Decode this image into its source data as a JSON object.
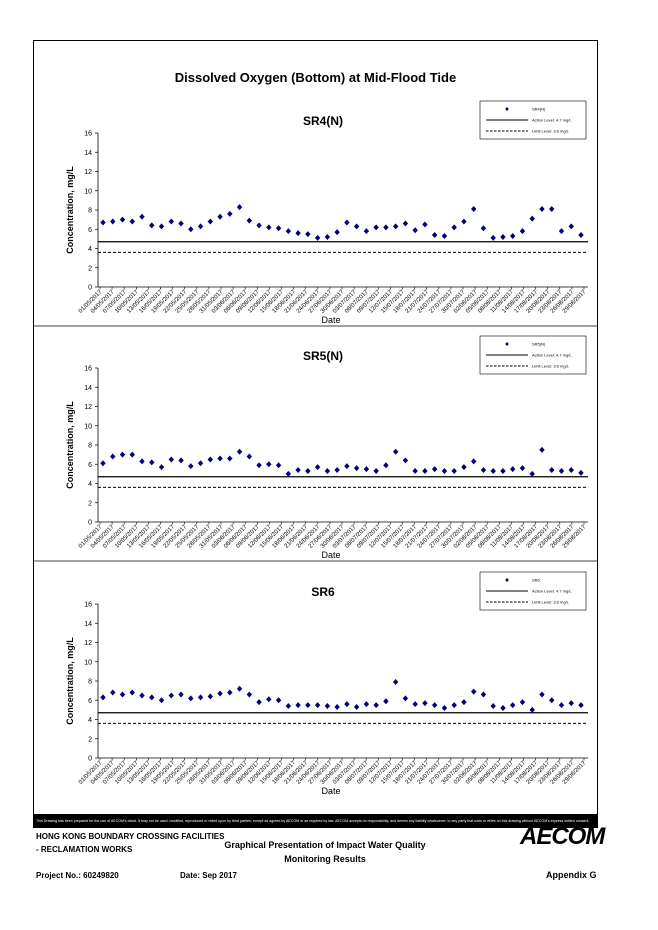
{
  "page_title": "Dissolved Oxygen (Bottom) at Mid-Flood Tide",
  "chart_data": [
    {
      "type": "scatter",
      "title": "SR4(N)",
      "xlabel": "Date",
      "ylabel": "Concentration, mg/L",
      "ylim": [
        0,
        16
      ],
      "yticks": [
        0,
        2,
        4,
        6,
        8,
        10,
        12,
        14,
        16
      ],
      "xlim": [
        "2017-05-01",
        "2017-06-30"
      ],
      "x_tick_labels": [
        "01/05/2017",
        "04/05/2017",
        "07/05/2017",
        "10/05/2017",
        "13/05/2017",
        "16/05/2017",
        "19/05/2017",
        "22/05/2017",
        "25/05/2017",
        "28/05/2017",
        "31/05/2017",
        "03/06/2017",
        "06/06/2017",
        "09/06/2017",
        "12/06/2017",
        "15/06/2017",
        "18/06/2017",
        "21/06/2017",
        "24/06/2017",
        "27/06/2017",
        "30/06/2017",
        "03/07/2017",
        "06/07/2017",
        "09/07/2017",
        "12/07/2017",
        "15/07/2017",
        "18/07/2017",
        "21/07/2017",
        "24/07/2017",
        "27/07/2017",
        "30/07/2017",
        "02/08/2017",
        "05/08/2017",
        "08/08/2017",
        "11/08/2017",
        "14/08/2017",
        "17/08/2017",
        "20/08/2017",
        "23/08/2017",
        "26/08/2017",
        "29/08/2017"
      ],
      "grid": false,
      "legend": {
        "position": "top-right",
        "entries": [
          "SR4(N)",
          "Action Level: 4.7 mg/L",
          "Limit Level: 3.6 mg/L"
        ]
      },
      "action_level": 4.7,
      "limit_level": 3.6,
      "series": [
        {
          "name": "SR4(N)",
          "values": [
            6.7,
            6.8,
            7.0,
            6.8,
            7.3,
            6.4,
            6.3,
            6.8,
            6.6,
            6.0,
            6.3,
            6.8,
            7.3,
            7.6,
            8.3,
            6.9,
            6.4,
            6.2,
            6.1,
            5.8,
            5.6,
            5.5,
            5.1,
            5.2,
            5.7,
            6.7,
            6.3,
            5.8,
            6.2,
            6.2,
            6.3,
            6.6,
            5.9,
            6.5,
            5.4,
            5.3,
            6.2,
            6.8,
            8.1,
            6.1,
            5.1,
            5.2,
            5.3,
            5.8,
            7.1,
            8.1,
            8.1,
            5.8,
            6.3,
            5.4
          ]
        }
      ]
    },
    {
      "type": "scatter",
      "title": "SR5(N)",
      "xlabel": "Date",
      "ylabel": "Concentration, mg/L",
      "ylim": [
        0,
        16
      ],
      "yticks": [
        0,
        2,
        4,
        6,
        8,
        10,
        12,
        14,
        16
      ],
      "x_tick_labels": [
        "01/05/2017",
        "04/05/2017",
        "07/05/2017",
        "10/05/2017",
        "13/05/2017",
        "16/05/2017",
        "19/05/2017",
        "22/05/2017",
        "25/05/2017",
        "28/05/2017",
        "31/05/2017",
        "03/06/2017",
        "06/06/2017",
        "09/06/2017",
        "12/06/2017",
        "15/06/2017",
        "18/06/2017",
        "21/06/2017",
        "24/06/2017",
        "27/06/2017",
        "30/06/2017",
        "03/07/2017",
        "06/07/2017",
        "09/07/2017",
        "12/07/2017",
        "15/07/2017",
        "18/07/2017",
        "21/07/2017",
        "24/07/2017",
        "27/07/2017",
        "30/07/2017",
        "02/08/2017",
        "05/08/2017",
        "08/08/2017",
        "11/08/2017",
        "14/08/2017",
        "17/08/2017",
        "20/08/2017",
        "23/08/2017",
        "26/08/2017",
        "29/08/2017"
      ],
      "grid": false,
      "legend": {
        "position": "top-right",
        "entries": [
          "SR5(N)",
          "Action Level: 4.7 mg/L",
          "Limit Level: 3.6 mg/L"
        ]
      },
      "action_level": 4.7,
      "limit_level": 3.6,
      "series": [
        {
          "name": "SR5(N)",
          "values": [
            6.1,
            6.8,
            7.0,
            7.0,
            6.3,
            6.2,
            5.7,
            6.5,
            6.4,
            5.8,
            6.1,
            6.5,
            6.6,
            6.6,
            7.3,
            6.8,
            5.9,
            6.0,
            5.9,
            5.0,
            5.4,
            5.3,
            5.7,
            5.3,
            5.4,
            5.8,
            5.6,
            5.5,
            5.3,
            5.9,
            7.3,
            6.4,
            5.3,
            5.3,
            5.5,
            5.3,
            5.3,
            5.7,
            6.3,
            5.4,
            5.3,
            5.3,
            5.5,
            5.6,
            5.0,
            7.5,
            5.4,
            5.3,
            5.4,
            5.1
          ]
        }
      ]
    },
    {
      "type": "scatter",
      "title": "SR6",
      "xlabel": "Date",
      "ylabel": "Concentration, mg/L",
      "ylim": [
        0,
        16
      ],
      "yticks": [
        0,
        2,
        4,
        6,
        8,
        10,
        12,
        14,
        16
      ],
      "x_tick_labels": [
        "01/05/2017",
        "04/05/2017",
        "07/05/2017",
        "10/05/2017",
        "13/05/2017",
        "16/05/2017",
        "19/05/2017",
        "22/05/2017",
        "25/05/2017",
        "28/05/2017",
        "31/05/2017",
        "03/06/2017",
        "06/06/2017",
        "09/06/2017",
        "12/06/2017",
        "15/06/2017",
        "18/06/2017",
        "21/06/2017",
        "24/06/2017",
        "27/06/2017",
        "30/06/2017",
        "03/07/2017",
        "06/07/2017",
        "09/07/2017",
        "12/07/2017",
        "15/07/2017",
        "18/07/2017",
        "21/07/2017",
        "24/07/2017",
        "27/07/2017",
        "30/07/2017",
        "02/08/2017",
        "05/08/2017",
        "08/08/2017",
        "11/08/2017",
        "14/08/2017",
        "17/08/2017",
        "20/08/2017",
        "23/08/2017",
        "26/08/2017",
        "29/08/2017"
      ],
      "grid": false,
      "legend": {
        "position": "top-right",
        "entries": [
          "SR6",
          "Action Level: 4.7 mg/L",
          "Limit Level: 3.6 mg/L"
        ]
      },
      "action_level": 4.7,
      "limit_level": 3.6,
      "series": [
        {
          "name": "SR6",
          "values": [
            6.3,
            6.8,
            6.6,
            6.8,
            6.5,
            6.3,
            6.0,
            6.5,
            6.6,
            6.2,
            6.3,
            6.4,
            6.7,
            6.8,
            7.2,
            6.6,
            5.8,
            6.1,
            6.0,
            5.4,
            5.5,
            5.5,
            5.5,
            5.4,
            5.3,
            5.6,
            5.3,
            5.6,
            5.5,
            5.9,
            7.9,
            6.2,
            5.6,
            5.7,
            5.5,
            5.2,
            5.5,
            5.8,
            6.9,
            6.6,
            5.4,
            5.2,
            5.5,
            5.8,
            5.0,
            6.6,
            6.0,
            5.5,
            5.7,
            5.5
          ]
        }
      ]
    }
  ],
  "footer": {
    "disclaimer": "This Drawing has been prepared for the use of AECOM's client. It may not be used, modified, reproduced or relied upon by third parties, except as agreed by AECOM or as required by law. AECOM accepts no responsibility, and denies any liability whatsoever, to any party that uses or relies on this drawing without AECOM's express written consent.",
    "client_line1": "HONG KONG BOUNDARY CROSSING FACILITIES",
    "client_line2": "- RECLAMATION WORKS",
    "drawing_title_line1": "Graphical Presentation of Impact Water Quality",
    "drawing_title_line2": "Monitoring Results",
    "project_no": "Project No.: 60249820",
    "date": "Date: Sep 2017",
    "appendix": "Appendix G",
    "logo_text": "AECOM"
  },
  "colors": {
    "marker": "#00007a",
    "line": "#000000"
  }
}
